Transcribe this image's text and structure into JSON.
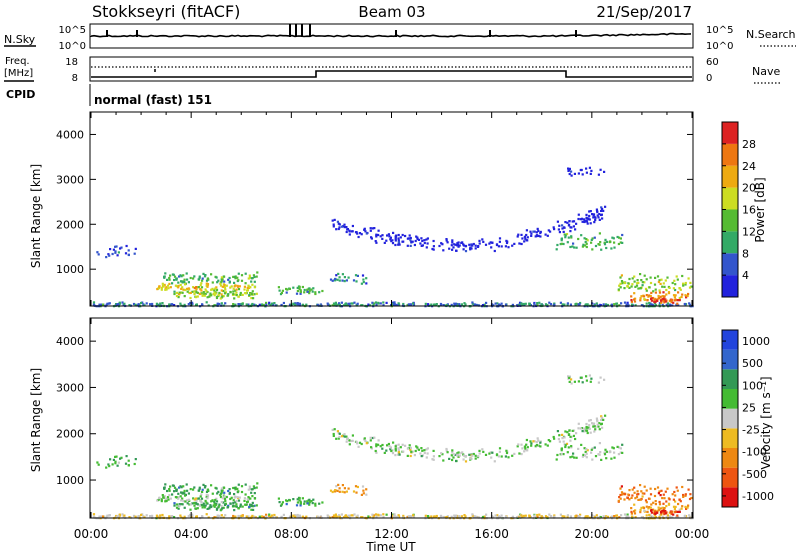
{
  "header": {
    "station": "Stokkseyri (fitACF)",
    "beam": "Beam 03",
    "date": "21/Sep/2017"
  },
  "strip_labels": {
    "nsky": "N.Sky",
    "nsky_top": "10^5",
    "nsky_bottom": "10^0",
    "nsearch": "N.Search",
    "nsearch_top": "10^5",
    "nsearch_bottom": "10^0",
    "freq": "Freq.",
    "freq_unit": "[MHz]",
    "freq_top": "18",
    "freq_bottom": "8",
    "nave": "Nave",
    "nave_top": "60",
    "nave_bottom": "0",
    "cpid": "CPID",
    "cpid_value": "normal (fast) 151"
  },
  "colors": {
    "power": [
      "#2222dd",
      "#3355cc",
      "#33aa66",
      "#55bb33",
      "#ccdd22",
      "#eeaa11",
      "#ee7711",
      "#dd2222"
    ],
    "velocity": [
      "#2244dd",
      "#3366cc",
      "#339955",
      "#44bb33",
      "#c8c8c8",
      "#eebb22",
      "#ee8811",
      "#ee5511",
      "#dd1111"
    ]
  },
  "chart_data": [
    {
      "type": "heatmap",
      "name": "power",
      "ylabel": "Slant Range [km]",
      "xlabel": "",
      "ylim": [
        180,
        4500
      ],
      "yticks": [
        1000,
        2000,
        3000,
        4000
      ],
      "colorbar": {
        "label": "Power [dB]",
        "ticks": [
          "4",
          "8",
          "12",
          "16",
          "20",
          "24",
          "28"
        ],
        "range": [
          0,
          32
        ]
      }
    },
    {
      "type": "heatmap",
      "name": "velocity",
      "ylabel": "Slant Range [km]",
      "xlabel": "Time UT",
      "xticks": [
        "00:00",
        "04:00",
        "08:00",
        "12:00",
        "16:00",
        "20:00",
        "00:00"
      ],
      "ylim": [
        180,
        4500
      ],
      "yticks": [
        1000,
        2000,
        3000,
        4000
      ],
      "colorbar": {
        "label": "Velocity [m s^-1]",
        "ticks": [
          "1000",
          "500",
          "100",
          "25",
          "-25",
          "-100",
          "-500",
          "-1000"
        ]
      }
    }
  ]
}
